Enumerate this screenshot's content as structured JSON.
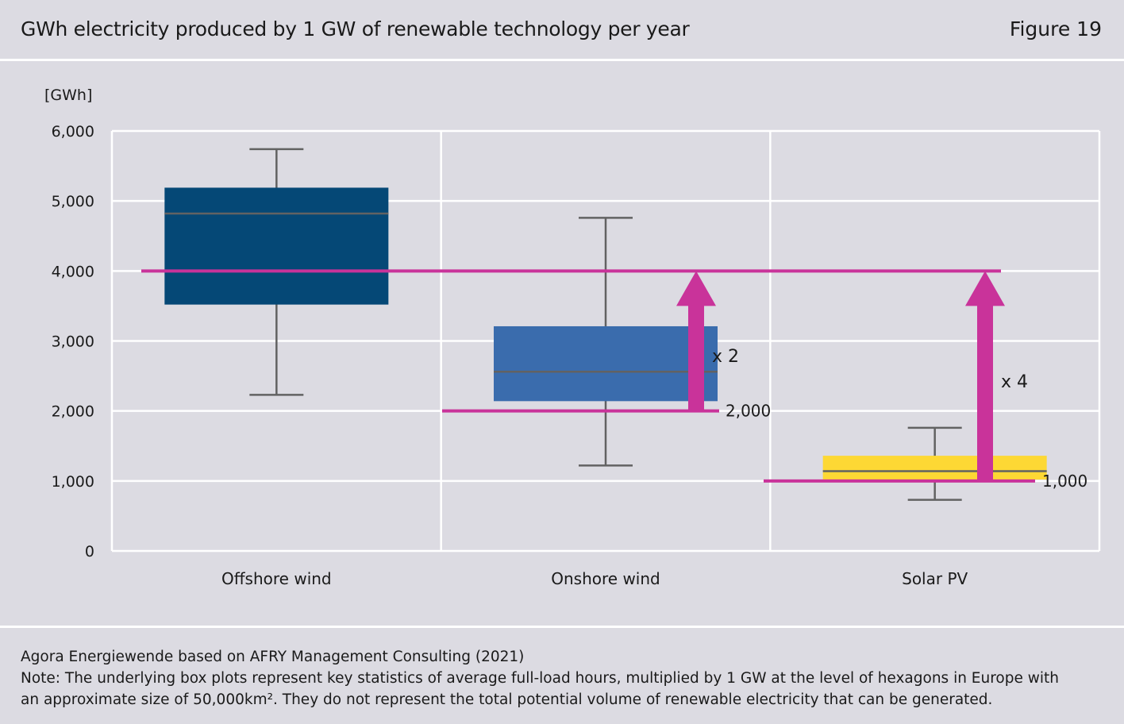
{
  "header": {
    "title": "GWh electricity produced by 1 GW of renewable technology per year",
    "figure_label": "Figure 19"
  },
  "footer": {
    "source": "Agora Energiewende based on AFRY Management Consulting (2021)",
    "note_line1": "Note: The underlying box plots represent key statistics of average full-load hours, multiplied by 1 GW at the level of hexagons in Europe with",
    "note_line2": "an approximate size of 50,000km². They do not represent the total potential volume of renewable electricity that can be generated."
  },
  "colors": {
    "background": "#dcdbe2",
    "grid": "#ffffff",
    "offshore": "#054876",
    "onshore": "#3a6cad",
    "solar": "#fdd834",
    "reference": "#c9339a",
    "whisker": "#626262"
  },
  "chart_data": {
    "type": "box",
    "ylabel": "[GWh]",
    "ylim": [
      0,
      6000
    ],
    "yticks": [
      0,
      1000,
      2000,
      3000,
      4000,
      5000,
      6000
    ],
    "ytick_labels": [
      "0",
      "1,000",
      "2,000",
      "3,000",
      "4,000",
      "5,000",
      "6,000"
    ],
    "categories": [
      "Offshore wind",
      "Onshore wind",
      "Solar PV"
    ],
    "boxes": [
      {
        "category": "Offshore wind",
        "whisker_low": 2230,
        "q1": 3520,
        "median": 4820,
        "q3": 5190,
        "whisker_high": 5740,
        "color": "#054876"
      },
      {
        "category": "Onshore wind",
        "whisker_low": 1220,
        "q1": 2140,
        "median": 2560,
        "q3": 3210,
        "whisker_high": 4760,
        "color": "#3a6cad"
      },
      {
        "category": "Solar PV",
        "whisker_low": 730,
        "q1": 1020,
        "median": 1140,
        "q3": 1360,
        "whisker_high": 1760,
        "color": "#fdd834"
      }
    ],
    "reference_lines": [
      {
        "value": 4000,
        "label": ""
      },
      {
        "value": 2000,
        "label": "2,000"
      },
      {
        "value": 1000,
        "label": "1,000"
      }
    ],
    "arrows": [
      {
        "from": 2000,
        "to": 4000,
        "label": "x 2"
      },
      {
        "from": 1000,
        "to": 4000,
        "label": "x 4"
      }
    ],
    "grid": true
  }
}
